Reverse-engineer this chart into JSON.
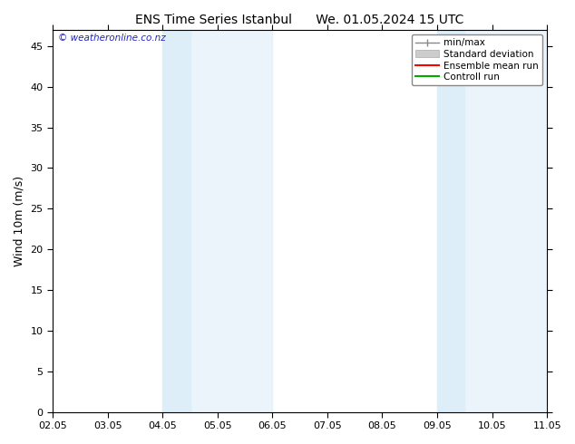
{
  "title_left": "ENS Time Series Istanbul",
  "title_right": "We. 01.05.2024 15 UTC",
  "ylabel": "Wind 10m (m/s)",
  "ylim": [
    0,
    47
  ],
  "yticks": [
    0,
    5,
    10,
    15,
    20,
    25,
    30,
    35,
    40,
    45
  ],
  "bg_color": "#ffffff",
  "plot_bg_color": "#ffffff",
  "shaded_band_color": "#ddeef8",
  "watermark": "© weatheronline.co.nz",
  "watermark_color": "#2222cc",
  "legend_items": [
    {
      "label": "min/max",
      "color": "#888888",
      "lw": 1.0
    },
    {
      "label": "Standard deviation",
      "color": "#cccccc",
      "lw": 6
    },
    {
      "label": "Ensemble mean run",
      "color": "#ff0000",
      "lw": 1.5
    },
    {
      "label": "Controll run",
      "color": "#00aa00",
      "lw": 1.5
    }
  ],
  "shaded_bands": [
    {
      "x_start": 2.0,
      "x_end": 3.0
    },
    {
      "x_start": 3.0,
      "x_end": 4.0
    },
    {
      "x_start": 7.0,
      "x_end": 8.0
    },
    {
      "x_start": 8.0,
      "x_end": 9.0
    }
  ],
  "xlim_days": [
    0,
    9
  ],
  "xtick_positions": [
    0,
    1,
    2,
    3,
    4,
    5,
    6,
    7,
    8,
    9
  ],
  "xtick_labels": [
    "02.05",
    "03.05",
    "04.05",
    "05.05",
    "06.05",
    "07.05",
    "08.05",
    "09.05",
    "10.05",
    "11.05"
  ],
  "tick_color": "#000000",
  "border_color": "#000000",
  "tick_fontsize": 8,
  "ylabel_fontsize": 9,
  "title_fontsize": 10
}
